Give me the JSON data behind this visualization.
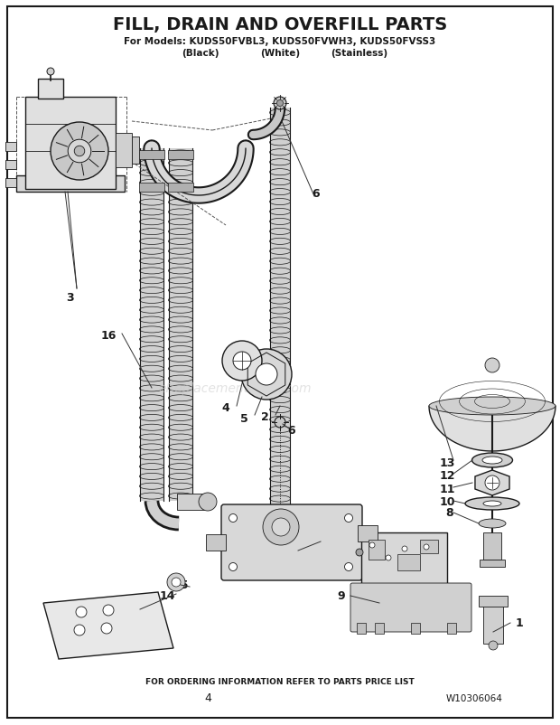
{
  "title": "FILL, DRAIN AND OVERFILL PARTS",
  "subtitle1": "For Models: KUDS50FVBL3, KUDS50FVWH3, KUDS50FVSS3",
  "subtitle2_black": "(Black)",
  "subtitle2_white": "(White)",
  "subtitle2_stainless": "(Stainless)",
  "footer1": "FOR ORDERING INFORMATION REFER TO PARTS PRICE LIST",
  "footer2": "4",
  "footer3": "W10306064",
  "watermark": "eReplacementParts.com",
  "bg_color": "#ffffff",
  "line_color": "#1a1a1a",
  "gray_fill": "#d8d8d8",
  "dark_gray": "#aaaaaa",
  "light_gray": "#eeeeee"
}
